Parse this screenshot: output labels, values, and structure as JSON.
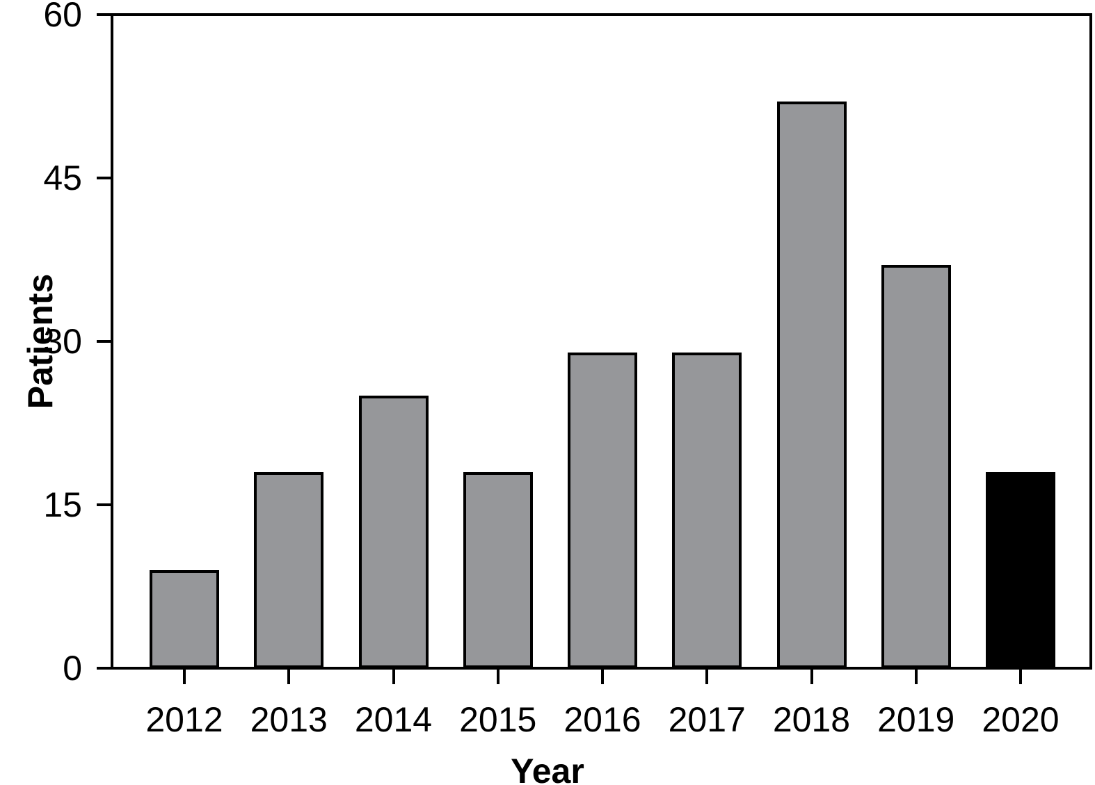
{
  "chart_data": {
    "type": "bar",
    "title": "",
    "xlabel": "Year",
    "ylabel": "Patients",
    "categories": [
      "2012",
      "2013",
      "2014",
      "2015",
      "2016",
      "2017",
      "2018",
      "2019",
      "2020"
    ],
    "values": [
      9,
      18,
      25,
      18,
      29,
      29,
      52,
      37,
      18
    ],
    "ylim": [
      0,
      60
    ],
    "yticks": [
      0,
      15,
      30,
      45,
      60
    ],
    "grid": "off",
    "legend": "none",
    "bar_fill_color": "#96979a",
    "bar_outline_color": "#000000",
    "highlight_category": "2020",
    "highlight_fill_color": "#000000",
    "axis_color": "#000000",
    "background_color": "#ffffff"
  }
}
